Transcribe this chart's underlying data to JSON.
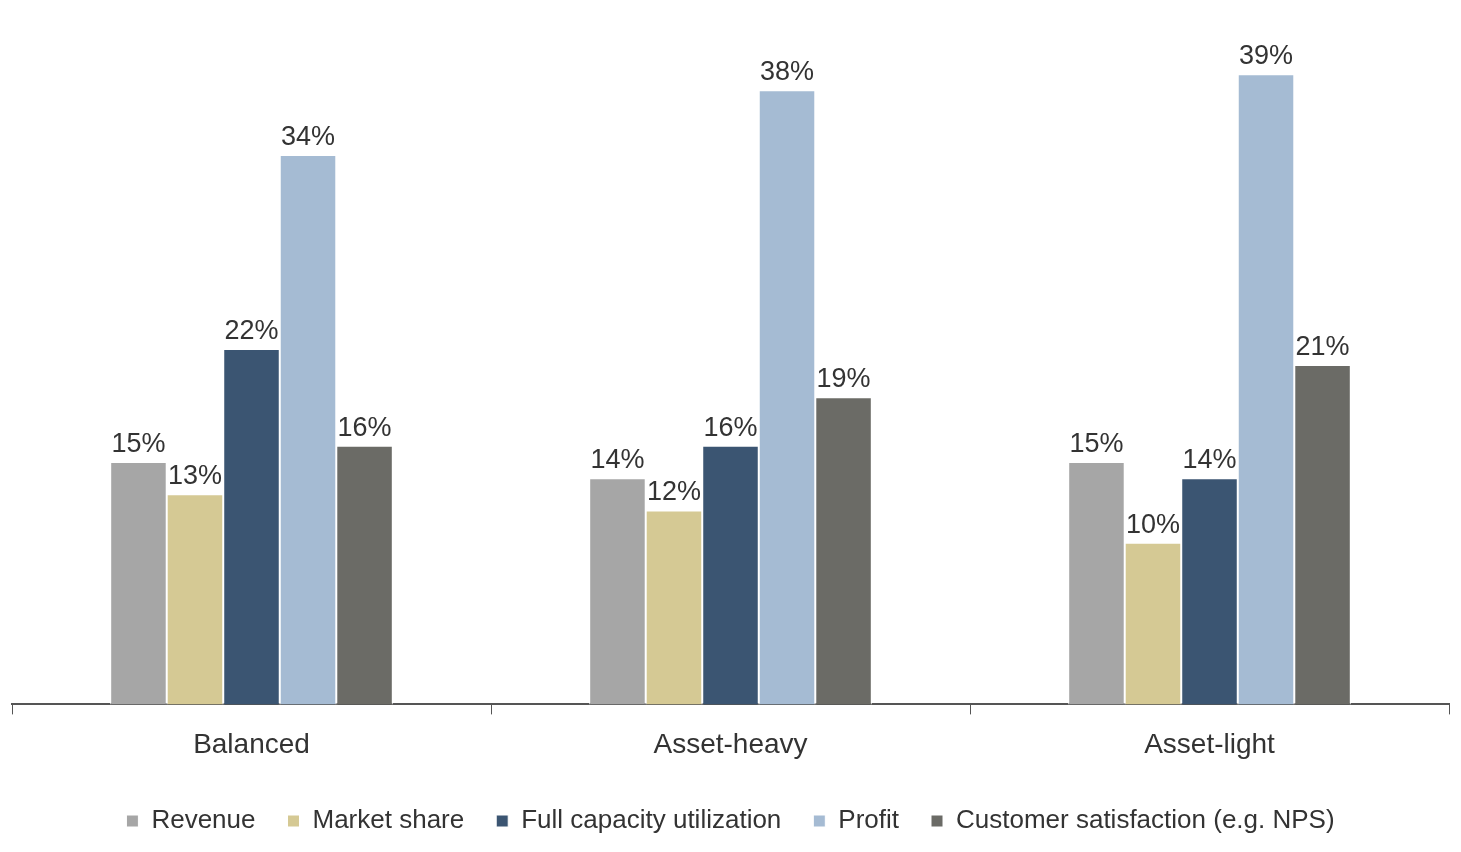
{
  "chart_data": {
    "type": "bar",
    "categories": [
      "Balanced",
      "Asset-heavy",
      "Asset-light"
    ],
    "legend": "bottom",
    "grid": false,
    "series": [
      {
        "name": "Revenue",
        "color": "#a6a6a6",
        "values": [
          15,
          14,
          15
        ],
        "value_labels": [
          "15%",
          "14%",
          "15%"
        ]
      },
      {
        "name": "Market share",
        "color": "#d5c994",
        "values": [
          13,
          12,
          10
        ],
        "value_labels": [
          "13%",
          "12%",
          "10%"
        ]
      },
      {
        "name": "Full capacity utilization",
        "color": "#3b5572",
        "values": [
          22,
          16,
          14
        ],
        "value_labels": [
          "22%",
          "16%",
          "14%"
        ]
      },
      {
        "name": "Profit",
        "color": "#a5bbd3",
        "values": [
          34,
          38,
          39
        ],
        "value_labels": [
          "34%",
          "38%",
          "39%"
        ]
      },
      {
        "name": "Customer satisfaction (e.g. NPS)",
        "color": "#6b6b66",
        "values": [
          16,
          19,
          21
        ],
        "value_labels": [
          "16%",
          "19%",
          "21%"
        ]
      }
    ]
  }
}
